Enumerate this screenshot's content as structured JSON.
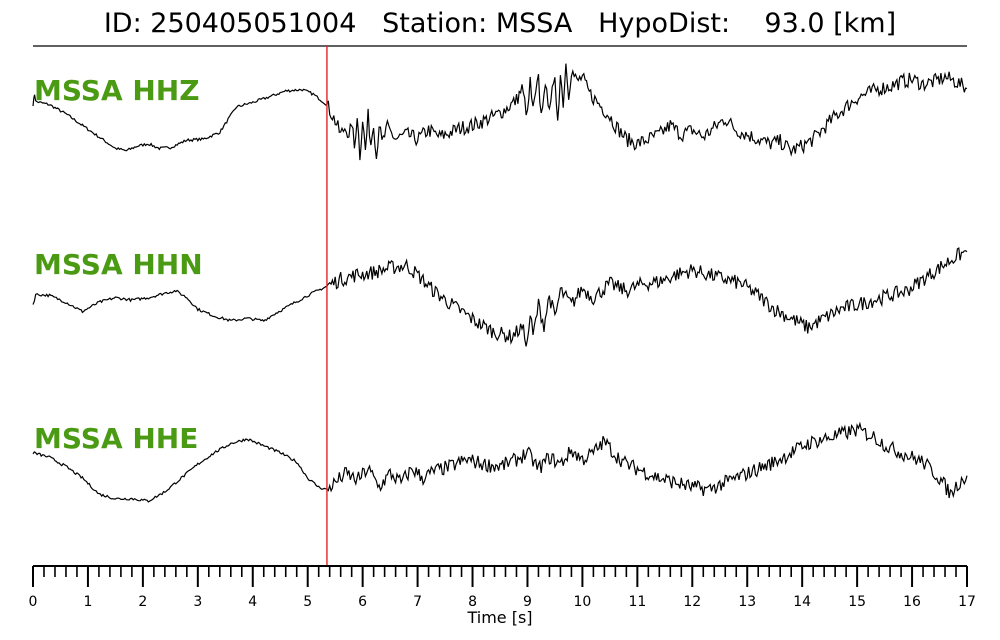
{
  "header": {
    "title": "ID: 250405051004   Station: MSSA   HypoDist:    93.0 [km]"
  },
  "colors": {
    "label": "#4a9a13",
    "trace": "#000000",
    "pick": "#e8231f"
  },
  "chart_data": {
    "type": "line",
    "title": "ID: 250405051004   Station: MSSA   HypoDist:    93.0 [km]",
    "xlabel": "Time [s]",
    "xlim": [
      0,
      17
    ],
    "x_ticks": [
      "0",
      "1",
      "2",
      "3",
      "4",
      "5",
      "6",
      "7",
      "8",
      "9",
      "10",
      "11",
      "12",
      "13",
      "14",
      "15",
      "16",
      "17"
    ],
    "minor_tick_step": 0.2,
    "pick_time": 5.35,
    "grid": false,
    "series": [
      {
        "name": "MSSA HHZ",
        "points": [
          [
            0,
            0.55
          ],
          [
            0.03,
            0.78
          ],
          [
            0.05,
            0.62
          ],
          [
            0.3,
            0.55
          ],
          [
            0.6,
            0.35
          ],
          [
            0.9,
            0.1
          ],
          [
            1.2,
            -0.15
          ],
          [
            1.5,
            -0.4
          ],
          [
            1.7,
            -0.45
          ],
          [
            1.9,
            -0.35
          ],
          [
            2.1,
            -0.3
          ],
          [
            2.3,
            -0.4
          ],
          [
            2.5,
            -0.38
          ],
          [
            2.8,
            -0.22
          ],
          [
            3.1,
            -0.2
          ],
          [
            3.4,
            -0.05
          ],
          [
            3.7,
            0.5
          ],
          [
            4.0,
            0.6
          ],
          [
            4.3,
            0.72
          ],
          [
            4.6,
            0.85
          ],
          [
            4.9,
            0.88
          ],
          [
            5.1,
            0.78
          ],
          [
            5.35,
            0.55
          ],
          [
            5.5,
            0.2
          ],
          [
            5.6,
            -0.1
          ],
          [
            5.7,
            0.1
          ],
          [
            5.75,
            -0.25
          ],
          [
            5.8,
            0.2
          ],
          [
            5.85,
            -0.4
          ],
          [
            5.9,
            0.35
          ],
          [
            5.95,
            -0.55
          ],
          [
            6.0,
            0.25
          ],
          [
            6.05,
            -0.45
          ],
          [
            6.1,
            0.3
          ],
          [
            6.15,
            -0.3
          ],
          [
            6.2,
            0.2
          ],
          [
            6.25,
            -0.6
          ],
          [
            6.3,
            0.15
          ],
          [
            6.35,
            -0.3
          ],
          [
            6.45,
            0.05
          ],
          [
            6.6,
            -0.2
          ],
          [
            6.8,
            -0.1
          ],
          [
            7.0,
            -0.2
          ],
          [
            7.2,
            0.0
          ],
          [
            7.4,
            -0.15
          ],
          [
            7.6,
            -0.05
          ],
          [
            7.8,
            0.05
          ],
          [
            8.0,
            0.1
          ],
          [
            8.2,
            0.2
          ],
          [
            8.4,
            0.3
          ],
          [
            8.6,
            0.45
          ],
          [
            8.8,
            0.65
          ],
          [
            8.9,
            0.9
          ],
          [
            9.0,
            0.3
          ],
          [
            9.05,
            1.05
          ],
          [
            9.1,
            0.4
          ],
          [
            9.2,
            1.1
          ],
          [
            9.25,
            0.3
          ],
          [
            9.3,
            0.9
          ],
          [
            9.4,
            0.6
          ],
          [
            9.5,
            1.0
          ],
          [
            9.55,
            0.3
          ],
          [
            9.6,
            1.2
          ],
          [
            9.65,
            0.6
          ],
          [
            9.7,
            1.45
          ],
          [
            9.75,
            0.8
          ],
          [
            9.8,
            1.3
          ],
          [
            9.9,
            1.05
          ],
          [
            10.0,
            1.15
          ],
          [
            10.1,
            0.85
          ],
          [
            10.2,
            0.7
          ],
          [
            10.35,
            0.5
          ],
          [
            10.5,
            0.3
          ],
          [
            10.6,
            0.1
          ],
          [
            10.8,
            -0.2
          ],
          [
            11.0,
            -0.3
          ],
          [
            11.2,
            -0.2
          ],
          [
            11.4,
            -0.1
          ],
          [
            11.6,
            0.1
          ],
          [
            11.8,
            -0.1
          ],
          [
            12.0,
            0.0
          ],
          [
            12.2,
            -0.15
          ],
          [
            12.4,
            0.05
          ],
          [
            12.6,
            0.25
          ],
          [
            12.8,
            0.0
          ],
          [
            13.0,
            -0.1
          ],
          [
            13.2,
            -0.2
          ],
          [
            13.4,
            -0.3
          ],
          [
            13.6,
            -0.25
          ],
          [
            13.8,
            -0.45
          ],
          [
            14.0,
            -0.35
          ],
          [
            14.2,
            -0.2
          ],
          [
            14.4,
            0.05
          ],
          [
            14.6,
            0.3
          ],
          [
            14.8,
            0.5
          ],
          [
            15.0,
            0.7
          ],
          [
            15.2,
            0.8
          ],
          [
            15.4,
            0.9
          ],
          [
            15.6,
            0.95
          ],
          [
            15.8,
            1.05
          ],
          [
            16.0,
            1.1
          ],
          [
            16.2,
            1.0
          ],
          [
            16.4,
            1.05
          ],
          [
            16.6,
            1.15
          ],
          [
            16.8,
            1.05
          ],
          [
            17.0,
            0.9
          ]
        ]
      },
      {
        "name": "MSSA HHN",
        "points": [
          [
            0,
            -0.1
          ],
          [
            0.05,
            0.12
          ],
          [
            0.3,
            0.1
          ],
          [
            0.6,
            -0.05
          ],
          [
            0.9,
            -0.25
          ],
          [
            1.2,
            -0.05
          ],
          [
            1.5,
            0.05
          ],
          [
            1.8,
            0.0
          ],
          [
            2.1,
            0.05
          ],
          [
            2.4,
            0.15
          ],
          [
            2.6,
            0.2
          ],
          [
            2.8,
            0.05
          ],
          [
            3.0,
            -0.2
          ],
          [
            3.3,
            -0.35
          ],
          [
            3.6,
            -0.45
          ],
          [
            3.9,
            -0.4
          ],
          [
            4.2,
            -0.45
          ],
          [
            4.4,
            -0.3
          ],
          [
            4.7,
            -0.1
          ],
          [
            5.0,
            0.1
          ],
          [
            5.35,
            0.3
          ],
          [
            5.6,
            0.45
          ],
          [
            5.9,
            0.55
          ],
          [
            6.2,
            0.6
          ],
          [
            6.5,
            0.7
          ],
          [
            6.8,
            0.75
          ],
          [
            7.0,
            0.55
          ],
          [
            7.2,
            0.3
          ],
          [
            7.5,
            0.0
          ],
          [
            7.8,
            -0.25
          ],
          [
            8.1,
            -0.5
          ],
          [
            8.4,
            -0.7
          ],
          [
            8.7,
            -0.8
          ],
          [
            8.9,
            -0.6
          ],
          [
            9.0,
            -0.95
          ],
          [
            9.05,
            -0.3
          ],
          [
            9.1,
            -0.8
          ],
          [
            9.2,
            -0.1
          ],
          [
            9.3,
            -0.55
          ],
          [
            9.4,
            0.1
          ],
          [
            9.5,
            -0.4
          ],
          [
            9.6,
            0.2
          ],
          [
            9.8,
            -0.1
          ],
          [
            10.0,
            0.25
          ],
          [
            10.2,
            0.05
          ],
          [
            10.5,
            0.35
          ],
          [
            10.8,
            0.2
          ],
          [
            11.1,
            0.35
          ],
          [
            11.4,
            0.4
          ],
          [
            11.7,
            0.55
          ],
          [
            12.0,
            0.65
          ],
          [
            12.3,
            0.55
          ],
          [
            12.6,
            0.45
          ],
          [
            12.9,
            0.35
          ],
          [
            13.2,
            0.1
          ],
          [
            13.5,
            -0.2
          ],
          [
            13.8,
            -0.4
          ],
          [
            14.1,
            -0.6
          ],
          [
            14.4,
            -0.4
          ],
          [
            14.7,
            -0.2
          ],
          [
            15.0,
            -0.1
          ],
          [
            15.3,
            0.0
          ],
          [
            15.6,
            0.1
          ],
          [
            15.9,
            0.2
          ],
          [
            16.2,
            0.45
          ],
          [
            16.5,
            0.7
          ],
          [
            16.8,
            0.95
          ],
          [
            17.0,
            1.05
          ]
        ]
      },
      {
        "name": "MSSA HHE",
        "points": [
          [
            0,
            0.55
          ],
          [
            0.3,
            0.45
          ],
          [
            0.6,
            0.25
          ],
          [
            0.9,
            0.0
          ],
          [
            1.2,
            -0.35
          ],
          [
            1.5,
            -0.45
          ],
          [
            1.8,
            -0.45
          ],
          [
            2.1,
            -0.5
          ],
          [
            2.4,
            -0.3
          ],
          [
            2.7,
            0.0
          ],
          [
            3.0,
            0.3
          ],
          [
            3.3,
            0.55
          ],
          [
            3.6,
            0.75
          ],
          [
            3.9,
            0.85
          ],
          [
            4.2,
            0.7
          ],
          [
            4.5,
            0.55
          ],
          [
            4.8,
            0.35
          ],
          [
            5.0,
            0.0
          ],
          [
            5.2,
            -0.2
          ],
          [
            5.35,
            -0.25
          ],
          [
            5.5,
            -0.1
          ],
          [
            5.7,
            0.1
          ],
          [
            5.9,
            -0.05
          ],
          [
            6.1,
            0.2
          ],
          [
            6.3,
            -0.2
          ],
          [
            6.5,
            0.1
          ],
          [
            6.7,
            -0.1
          ],
          [
            6.9,
            0.2
          ],
          [
            7.1,
            0.0
          ],
          [
            7.3,
            0.15
          ],
          [
            7.6,
            0.25
          ],
          [
            7.9,
            0.4
          ],
          [
            8.2,
            0.3
          ],
          [
            8.5,
            0.25
          ],
          [
            8.8,
            0.4
          ],
          [
            9.0,
            0.55
          ],
          [
            9.2,
            0.2
          ],
          [
            9.4,
            0.45
          ],
          [
            9.6,
            0.3
          ],
          [
            9.8,
            0.6
          ],
          [
            10.0,
            0.4
          ],
          [
            10.2,
            0.55
          ],
          [
            10.4,
            0.8
          ],
          [
            10.6,
            0.5
          ],
          [
            10.8,
            0.3
          ],
          [
            11.1,
            0.15
          ],
          [
            11.4,
            0.0
          ],
          [
            11.7,
            -0.1
          ],
          [
            12.0,
            -0.2
          ],
          [
            12.3,
            -0.25
          ],
          [
            12.6,
            -0.1
          ],
          [
            12.9,
            0.05
          ],
          [
            13.2,
            0.2
          ],
          [
            13.5,
            0.35
          ],
          [
            13.8,
            0.55
          ],
          [
            14.1,
            0.75
          ],
          [
            14.4,
            0.85
          ],
          [
            14.7,
            0.95
          ],
          [
            15.0,
            1.05
          ],
          [
            15.3,
            0.9
          ],
          [
            15.6,
            0.65
          ],
          [
            15.9,
            0.5
          ],
          [
            16.2,
            0.35
          ],
          [
            16.5,
            0.0
          ],
          [
            16.7,
            -0.35
          ],
          [
            16.85,
            -0.1
          ],
          [
            17.0,
            0.05
          ]
        ]
      }
    ]
  }
}
